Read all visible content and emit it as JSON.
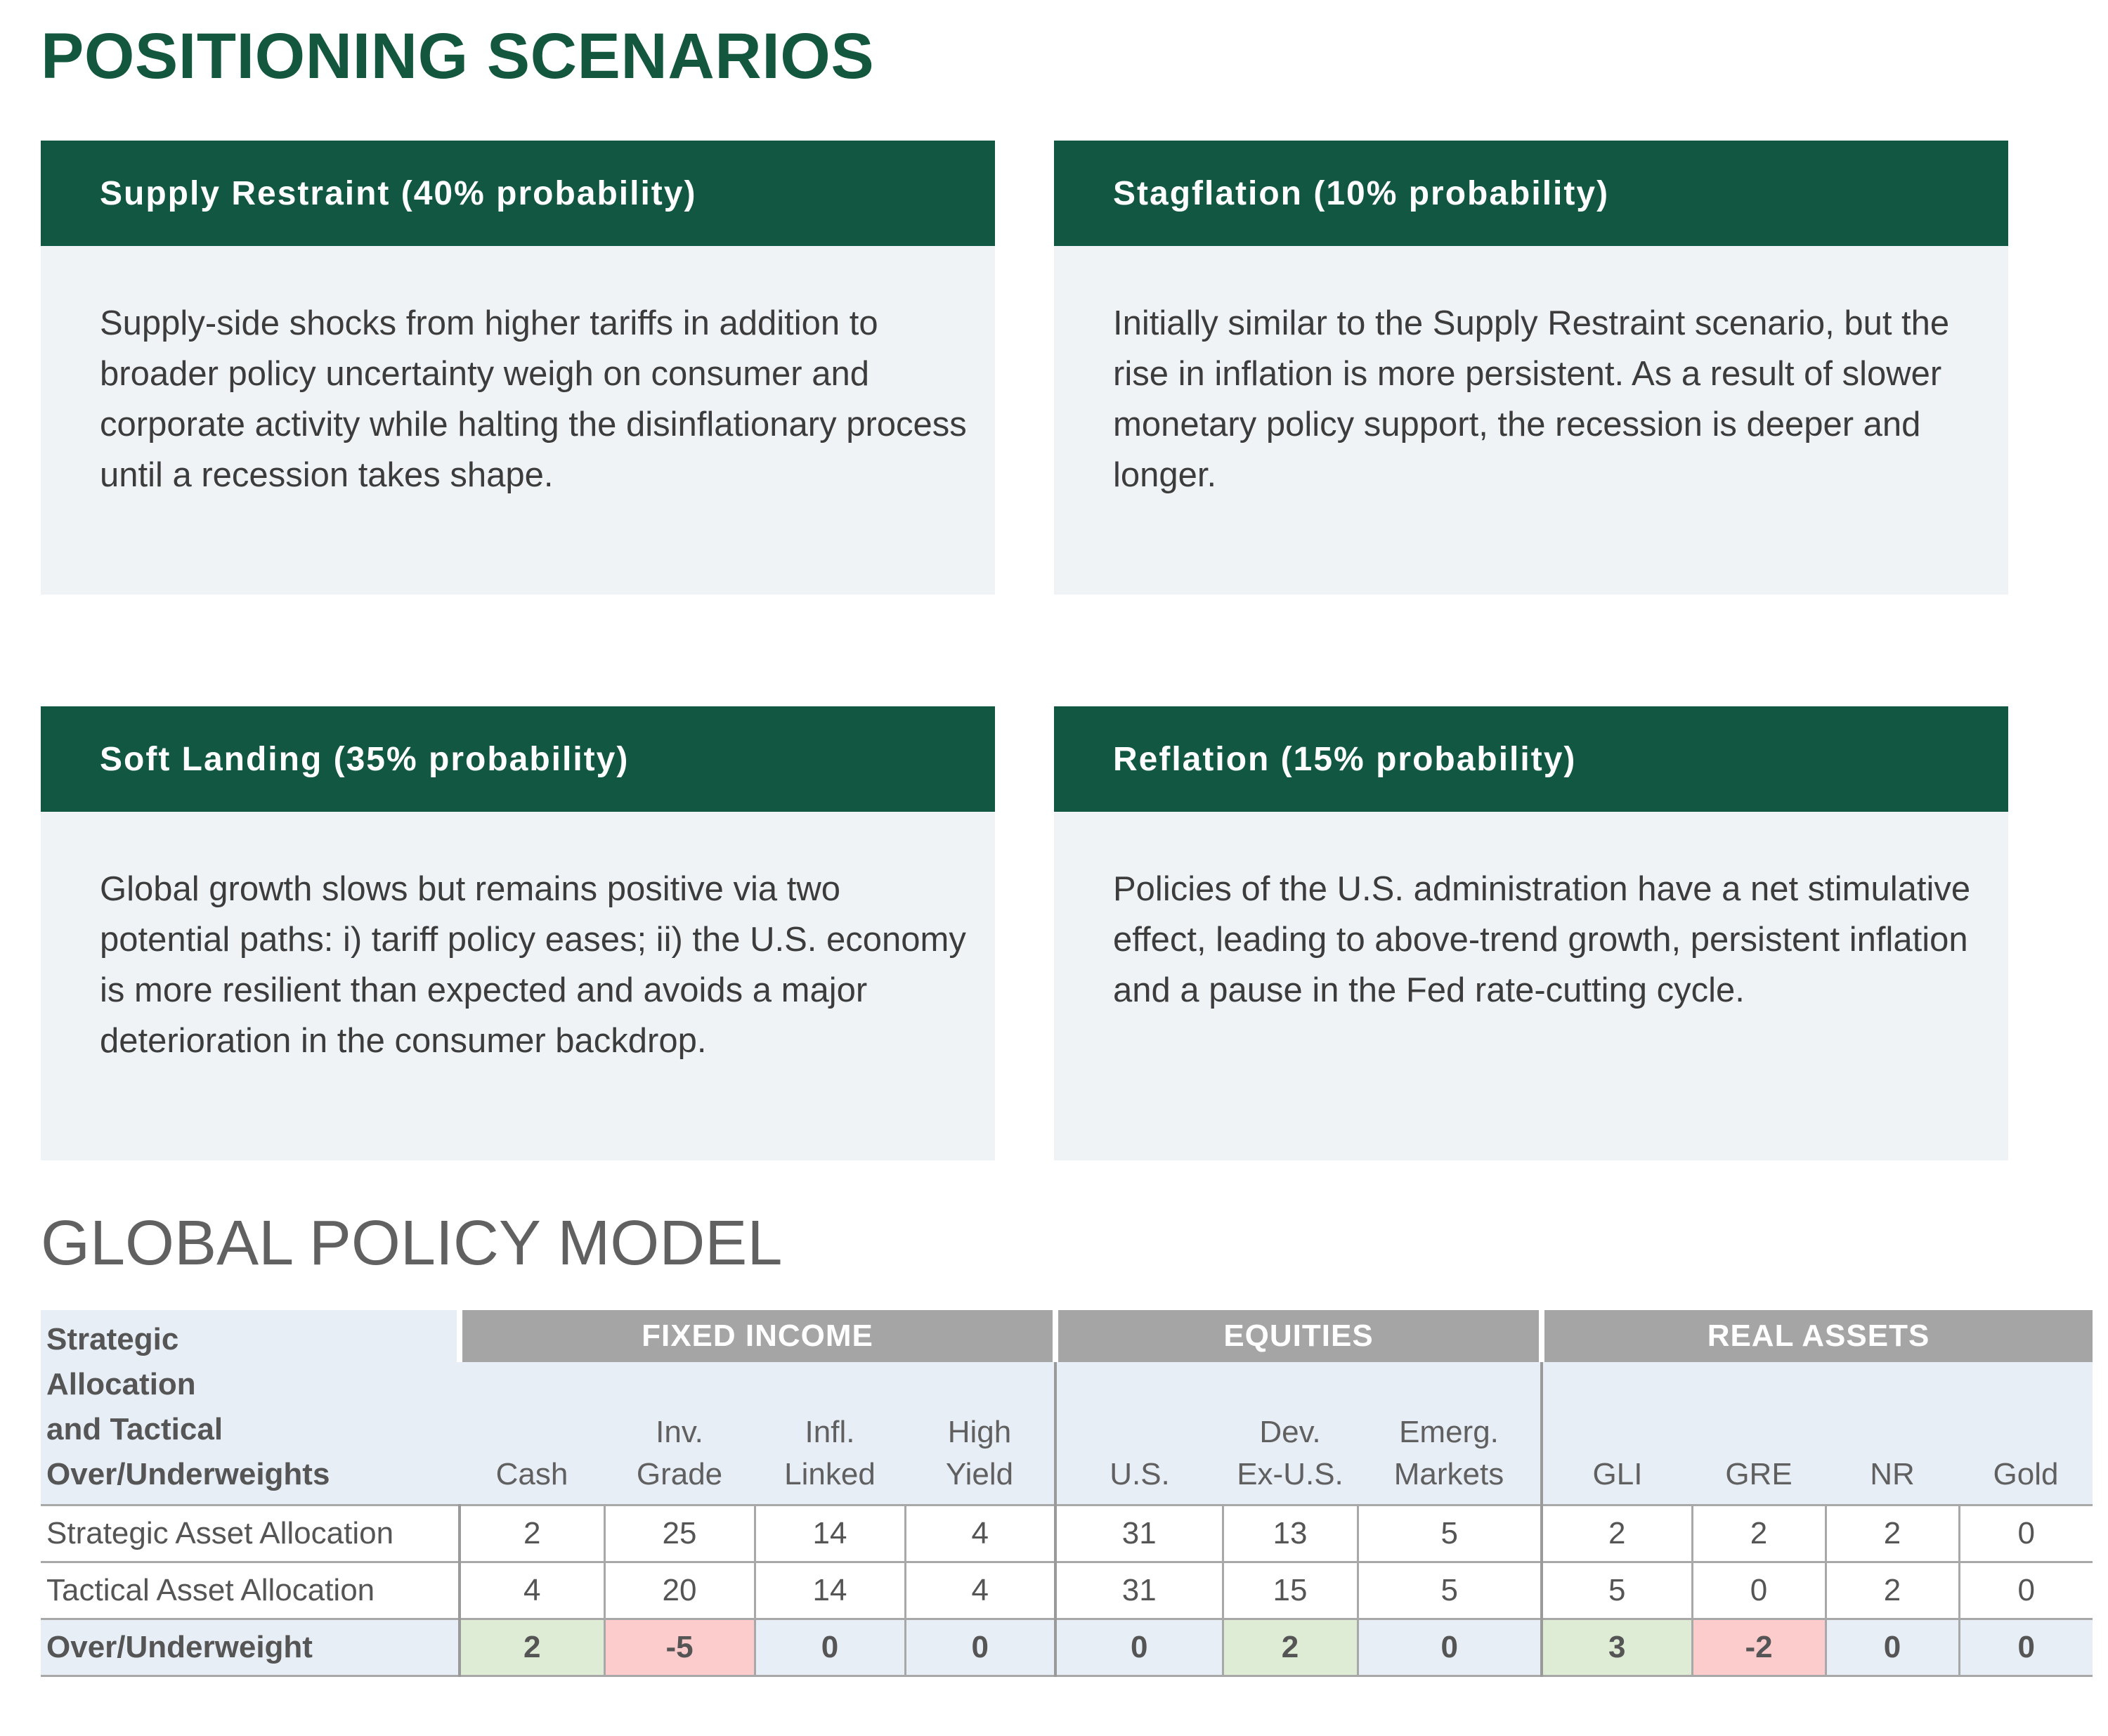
{
  "page_title": "POSITIONING SCENARIOS",
  "scenarios": [
    {
      "title": "Supply Restraint (40% probability)",
      "body": "Supply-side shocks from higher tariffs in addition to broader policy uncertainty weigh on consumer and corporate activity while halting the disinflationary process until a recession takes shape."
    },
    {
      "title": "Stagflation (10% probability)",
      "body": "Initially similar to the Supply Restraint scenario, but the rise in inflation is more persistent. As a result of slower monetary policy support, the recession is deeper and longer."
    },
    {
      "title": "Soft Landing (35% probability)",
      "body": "Global growth slows but remains positive via two potential paths: i) tariff policy eases; ii) the U.S. economy is more resilient than expected and avoids a major deterioration in the consumer backdrop."
    },
    {
      "title": "Reflation (15% probability)",
      "body": "Policies of the U.S. administration have a net stimulative effect, leading to above-trend growth, persistent inflation and a pause in the Fed rate-cutting cycle."
    }
  ],
  "policy_model": {
    "title": "GLOBAL POLICY MODEL",
    "corner_label": [
      "Strategic",
      "Allocation",
      "and Tactical",
      "Over/Underweights"
    ],
    "groups": [
      "FIXED INCOME",
      "EQUITIES",
      "REAL ASSETS"
    ],
    "columns": [
      [
        "",
        "Cash"
      ],
      [
        "Inv.",
        "Grade"
      ],
      [
        "Infl.",
        "Linked"
      ],
      [
        "High",
        "Yield"
      ],
      [
        "",
        "U.S."
      ],
      [
        "Dev.",
        "Ex-U.S."
      ],
      [
        "Emerg.",
        "Markets"
      ],
      [
        "",
        "GLI"
      ],
      [
        "",
        "GRE"
      ],
      [
        "",
        "NR"
      ],
      [
        "",
        "Gold"
      ]
    ],
    "rows": [
      {
        "label": "Strategic Asset Allocation",
        "values": [
          "2",
          "25",
          "14",
          "4",
          "31",
          "13",
          "5",
          "2",
          "2",
          "2",
          "0"
        ]
      },
      {
        "label": "Tactical Asset Allocation",
        "values": [
          "4",
          "20",
          "14",
          "4",
          "31",
          "15",
          "5",
          "5",
          "0",
          "2",
          "0"
        ]
      },
      {
        "label": "Over/Underweight",
        "values": [
          "2",
          "-5",
          "0",
          "0",
          "0",
          "2",
          "0",
          "3",
          "-2",
          "0",
          "0"
        ]
      }
    ],
    "colors": {
      "positive": "#deebd5",
      "negative": "#fccbcb",
      "neutral": "#e8eef5"
    }
  }
}
